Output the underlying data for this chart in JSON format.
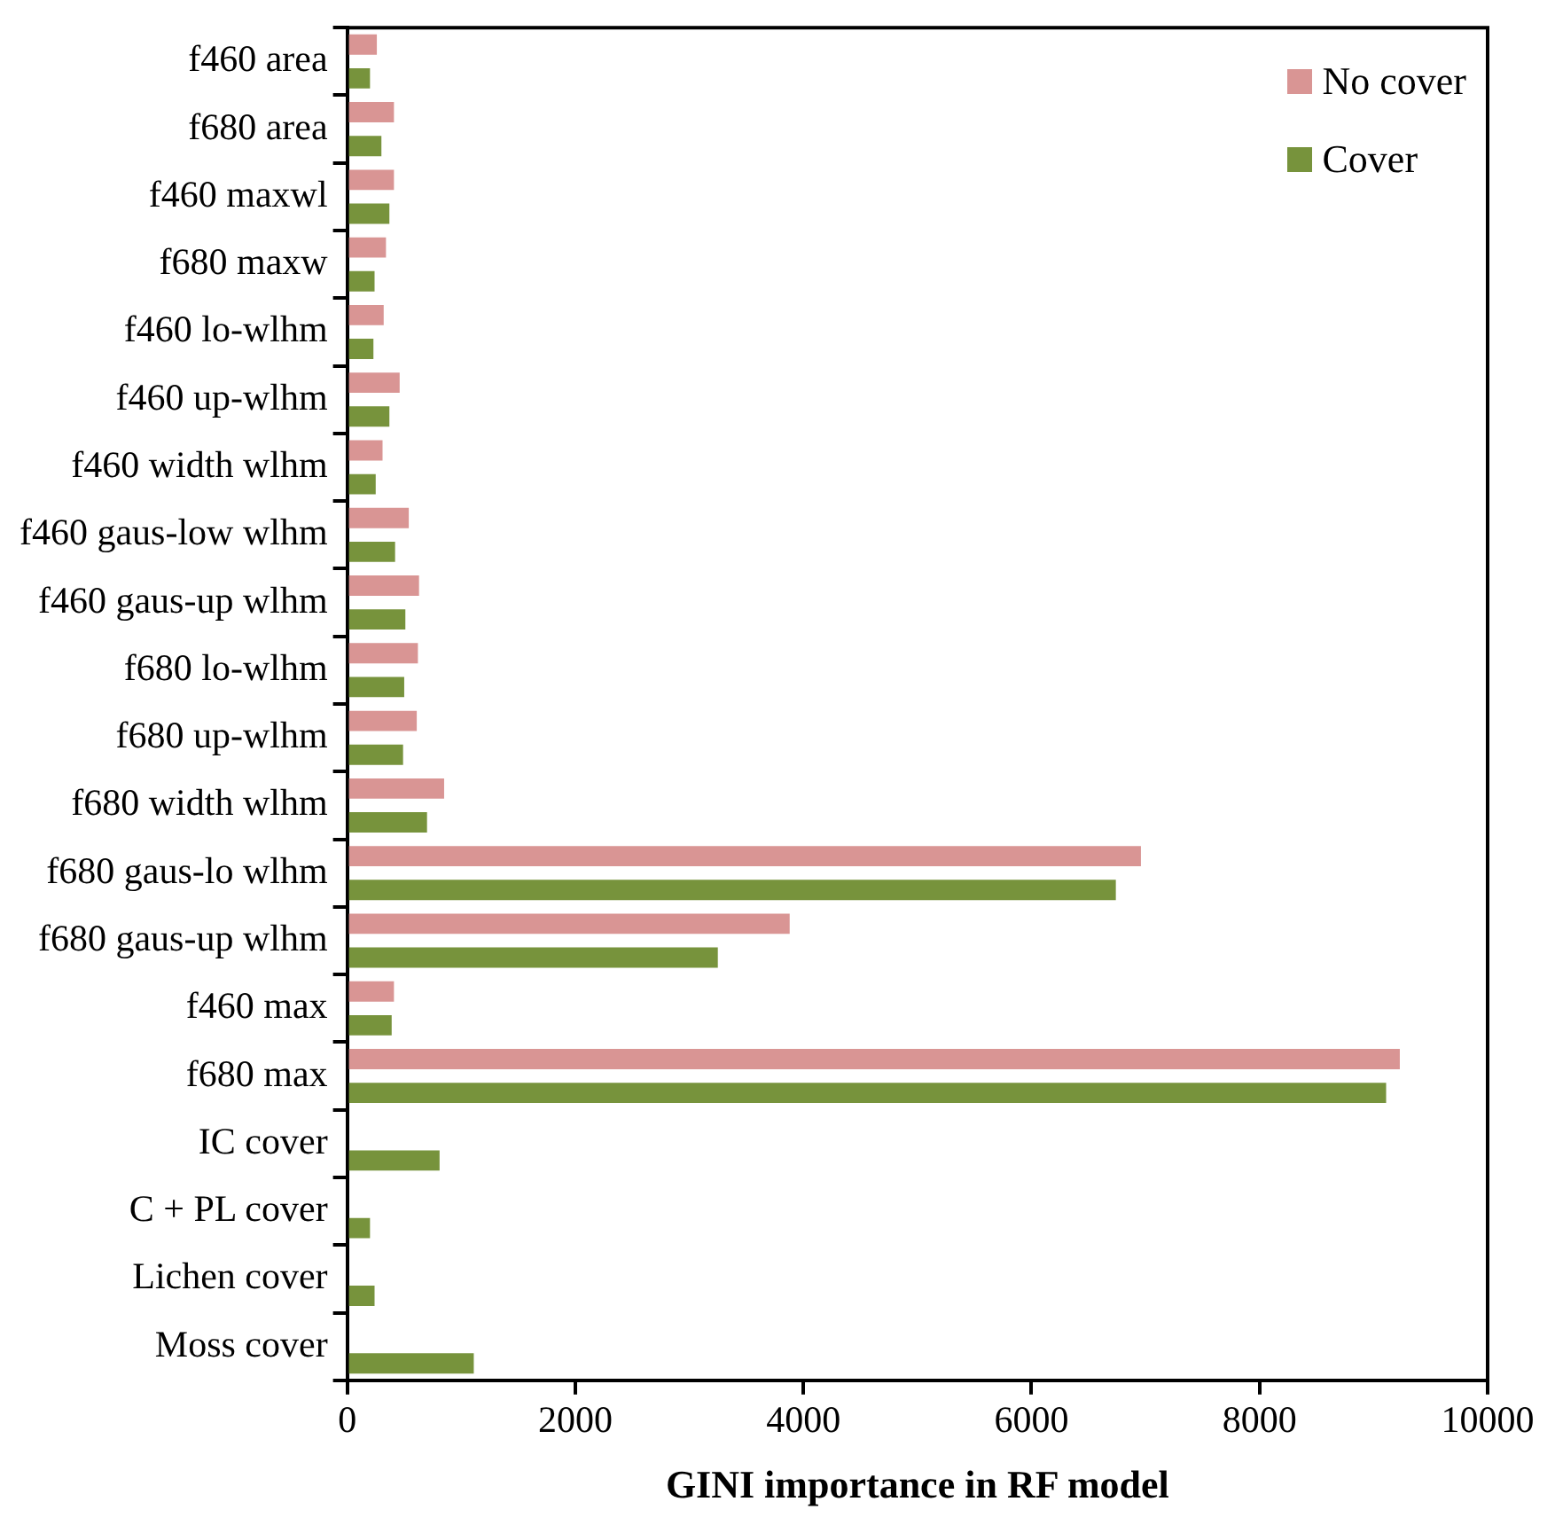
{
  "chart_data": {
    "type": "bar",
    "orientation": "horizontal",
    "xlabel": "GINI importance in RF model",
    "categories": [
      "f460 area",
      "f680 area",
      "f460 maxwl",
      "f680 maxw",
      "f460 lo-wlhm",
      "f460 up-wlhm",
      "f460 width wlhm",
      "f460 gaus-low wlhm",
      "f460 gaus-up wlhm",
      "f680 lo-wlhm",
      "f680 up-wlhm",
      "f680 width wlhm",
      "f680 gaus-lo wlhm",
      "f680 gaus-up wlhm",
      "f460 max",
      "f680 max",
      "IC cover",
      "C + PL cover",
      "Lichen cover",
      "Moss cover"
    ],
    "series": [
      {
        "name": "No cover",
        "color": "#d99594",
        "values": [
          260,
          410,
          410,
          340,
          320,
          460,
          310,
          540,
          630,
          620,
          610,
          850,
          6960,
          3880,
          410,
          9230,
          null,
          null,
          null,
          null
        ]
      },
      {
        "name": "Cover",
        "color": "#77933c",
        "values": [
          200,
          300,
          370,
          240,
          230,
          370,
          250,
          420,
          510,
          500,
          490,
          700,
          6740,
          3250,
          390,
          9110,
          810,
          200,
          240,
          1110
        ]
      }
    ],
    "xlim": [
      0,
      10000
    ],
    "xticks": [
      0,
      2000,
      4000,
      6000,
      8000,
      10000
    ],
    "grid": false,
    "legend": "top right"
  }
}
